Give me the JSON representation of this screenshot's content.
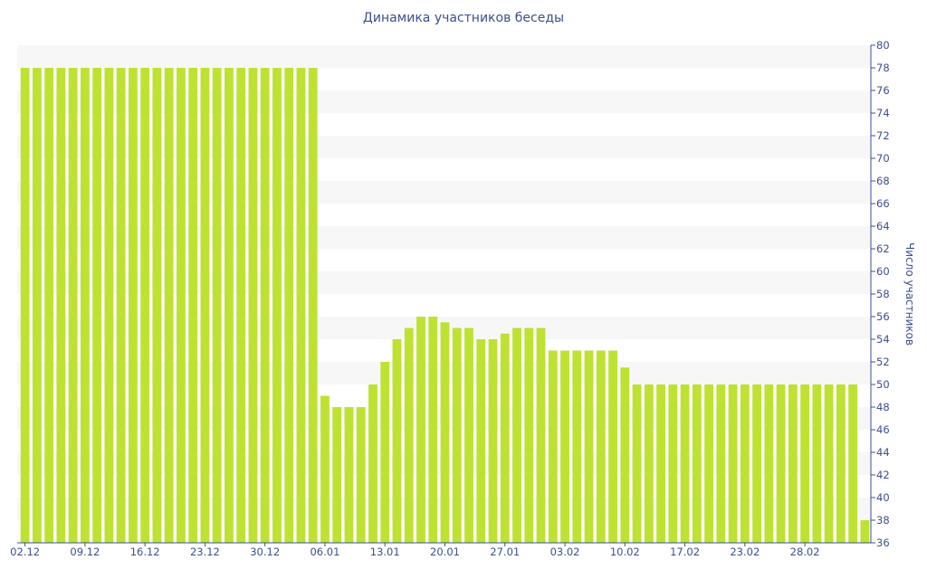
{
  "chart_data": {
    "type": "bar",
    "title": "Динамика участников беседы",
    "xlabel": "",
    "ylabel": "Число участников",
    "ylim": [
      36,
      80
    ],
    "y_tick_step": 2,
    "y_axis_position": "right",
    "grid": "alternating horizontal bands",
    "legend": "none",
    "bar_color": "#bde232",
    "band_color": "#f7f7f7",
    "axis_color": "#3c4f8c",
    "x_tick_labels": [
      {
        "index": 0,
        "label": "02.12"
      },
      {
        "index": 5,
        "label": "09.12"
      },
      {
        "index": 10,
        "label": "16.12"
      },
      {
        "index": 15,
        "label": "23.12"
      },
      {
        "index": 20,
        "label": "30.12"
      },
      {
        "index": 25,
        "label": "06.01"
      },
      {
        "index": 30,
        "label": "13.01"
      },
      {
        "index": 35,
        "label": "20.01"
      },
      {
        "index": 40,
        "label": "27.01"
      },
      {
        "index": 45,
        "label": "03.02"
      },
      {
        "index": 50,
        "label": "10.02"
      },
      {
        "index": 55,
        "label": "17.02"
      },
      {
        "index": 60,
        "label": "23.02"
      },
      {
        "index": 65,
        "label": "28.02"
      }
    ],
    "values": [
      78,
      78,
      78,
      78,
      78,
      78,
      78,
      78,
      78,
      78,
      78,
      78,
      78,
      78,
      78,
      78,
      78,
      78,
      78,
      78,
      78,
      78,
      78,
      78,
      78,
      49,
      48,
      48,
      48,
      50,
      52,
      54,
      55,
      56,
      56,
      55.5,
      55,
      55,
      54,
      54,
      54.5,
      55,
      55,
      55,
      53,
      53,
      53,
      53,
      53,
      53,
      51.5,
      50,
      50,
      50,
      50,
      50,
      50,
      50,
      50,
      50,
      50,
      50,
      50,
      50,
      50,
      50,
      50,
      50,
      50,
      50,
      38
    ]
  }
}
